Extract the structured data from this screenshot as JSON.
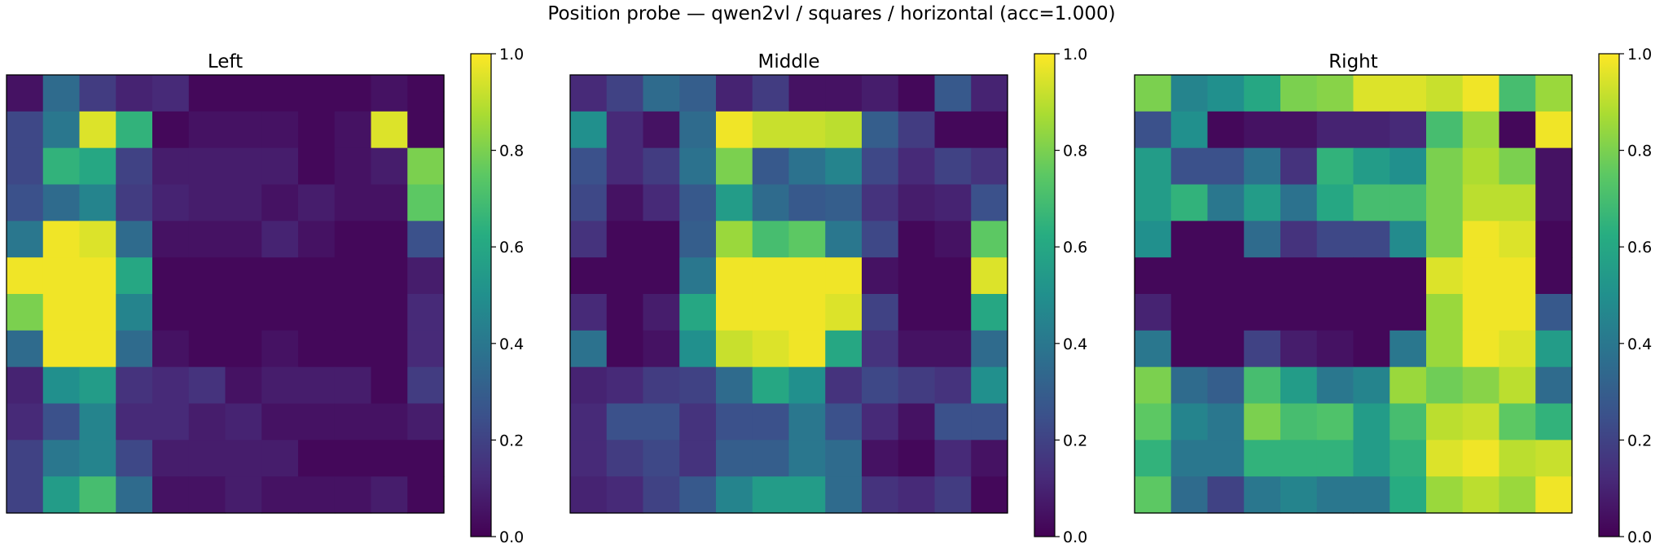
{
  "figure": {
    "title": "Position probe — qwen2vl / squares / horizontal (acc=1.000)"
  },
  "chart_data": [
    {
      "type": "heatmap",
      "title": "Left",
      "colormap": "viridis",
      "vmin": 0.0,
      "vmax": 1.0,
      "colorbar_ticks": [
        "0.0",
        "0.2",
        "0.4",
        "0.6",
        "0.8",
        "1.0"
      ],
      "grid": false,
      "values": [
        [
          0.05,
          0.35,
          0.18,
          0.1,
          0.12,
          0.02,
          0.02,
          0.02,
          0.02,
          0.02,
          0.05,
          0.02
        ],
        [
          0.22,
          0.4,
          0.95,
          0.65,
          0.02,
          0.05,
          0.05,
          0.05,
          0.02,
          0.05,
          0.95,
          0.02
        ],
        [
          0.22,
          0.65,
          0.6,
          0.2,
          0.08,
          0.08,
          0.08,
          0.08,
          0.02,
          0.05,
          0.08,
          0.8
        ],
        [
          0.25,
          0.35,
          0.45,
          0.18,
          0.1,
          0.08,
          0.08,
          0.05,
          0.08,
          0.05,
          0.05,
          0.75
        ],
        [
          0.4,
          0.98,
          0.95,
          0.35,
          0.05,
          0.05,
          0.05,
          0.1,
          0.05,
          0.02,
          0.02,
          0.25
        ],
        [
          0.98,
          0.98,
          0.98,
          0.6,
          0.02,
          0.02,
          0.02,
          0.02,
          0.02,
          0.02,
          0.02,
          0.08
        ],
        [
          0.8,
          0.98,
          0.98,
          0.45,
          0.02,
          0.02,
          0.02,
          0.02,
          0.02,
          0.02,
          0.02,
          0.12
        ],
        [
          0.35,
          0.98,
          0.98,
          0.35,
          0.05,
          0.02,
          0.02,
          0.05,
          0.02,
          0.02,
          0.02,
          0.12
        ],
        [
          0.1,
          0.5,
          0.55,
          0.15,
          0.12,
          0.15,
          0.05,
          0.08,
          0.08,
          0.08,
          0.02,
          0.18
        ],
        [
          0.12,
          0.25,
          0.45,
          0.12,
          0.12,
          0.08,
          0.1,
          0.05,
          0.05,
          0.05,
          0.05,
          0.08
        ],
        [
          0.2,
          0.4,
          0.45,
          0.22,
          0.08,
          0.08,
          0.08,
          0.08,
          0.02,
          0.02,
          0.02,
          0.02
        ],
        [
          0.2,
          0.55,
          0.7,
          0.35,
          0.05,
          0.05,
          0.08,
          0.05,
          0.05,
          0.05,
          0.08,
          0.02
        ]
      ]
    },
    {
      "type": "heatmap",
      "title": "Middle",
      "colormap": "viridis",
      "vmin": 0.0,
      "vmax": 1.0,
      "colorbar_ticks": [
        "0.0",
        "0.2",
        "0.4",
        "0.6",
        "0.8",
        "1.0"
      ],
      "grid": false,
      "values": [
        [
          0.12,
          0.2,
          0.35,
          0.3,
          0.1,
          0.18,
          0.05,
          0.05,
          0.08,
          0.02,
          0.28,
          0.1
        ],
        [
          0.5,
          0.12,
          0.05,
          0.35,
          0.98,
          0.92,
          0.92,
          0.9,
          0.3,
          0.18,
          0.02,
          0.02
        ],
        [
          0.25,
          0.12,
          0.18,
          0.38,
          0.8,
          0.28,
          0.38,
          0.45,
          0.22,
          0.12,
          0.2,
          0.15
        ],
        [
          0.22,
          0.05,
          0.12,
          0.28,
          0.55,
          0.35,
          0.28,
          0.3,
          0.15,
          0.08,
          0.1,
          0.25
        ],
        [
          0.15,
          0.02,
          0.02,
          0.3,
          0.85,
          0.7,
          0.75,
          0.4,
          0.22,
          0.02,
          0.05,
          0.75
        ],
        [
          0.02,
          0.02,
          0.02,
          0.4,
          0.98,
          0.98,
          0.98,
          0.98,
          0.05,
          0.02,
          0.02,
          0.95
        ],
        [
          0.12,
          0.02,
          0.08,
          0.6,
          0.98,
          0.98,
          0.98,
          0.95,
          0.2,
          0.02,
          0.02,
          0.6
        ],
        [
          0.38,
          0.02,
          0.05,
          0.5,
          0.92,
          0.95,
          0.98,
          0.6,
          0.15,
          0.05,
          0.05,
          0.35
        ],
        [
          0.1,
          0.12,
          0.18,
          0.2,
          0.35,
          0.6,
          0.5,
          0.15,
          0.22,
          0.18,
          0.15,
          0.5
        ],
        [
          0.12,
          0.25,
          0.25,
          0.15,
          0.25,
          0.25,
          0.4,
          0.25,
          0.12,
          0.05,
          0.25,
          0.25
        ],
        [
          0.12,
          0.18,
          0.22,
          0.15,
          0.3,
          0.3,
          0.4,
          0.35,
          0.05,
          0.02,
          0.12,
          0.05
        ],
        [
          0.1,
          0.12,
          0.2,
          0.28,
          0.45,
          0.55,
          0.55,
          0.35,
          0.15,
          0.12,
          0.18,
          0.02
        ]
      ]
    },
    {
      "type": "heatmap",
      "title": "Right",
      "colormap": "viridis",
      "vmin": 0.0,
      "vmax": 1.0,
      "colorbar_ticks": [
        "0.0",
        "0.2",
        "0.4",
        "0.6",
        "0.8",
        "1.0"
      ],
      "grid": false,
      "values": [
        [
          0.8,
          0.45,
          0.5,
          0.6,
          0.8,
          0.82,
          0.95,
          0.95,
          0.92,
          0.98,
          0.7,
          0.85
        ],
        [
          0.25,
          0.5,
          0.02,
          0.05,
          0.05,
          0.1,
          0.1,
          0.12,
          0.7,
          0.85,
          0.02,
          0.98
        ],
        [
          0.55,
          0.25,
          0.25,
          0.38,
          0.15,
          0.65,
          0.55,
          0.5,
          0.8,
          0.88,
          0.8,
          0.05
        ],
        [
          0.55,
          0.65,
          0.4,
          0.55,
          0.38,
          0.6,
          0.7,
          0.7,
          0.8,
          0.9,
          0.9,
          0.05
        ],
        [
          0.5,
          0.02,
          0.02,
          0.35,
          0.15,
          0.22,
          0.22,
          0.48,
          0.8,
          0.98,
          0.95,
          0.02
        ],
        [
          0.02,
          0.02,
          0.02,
          0.02,
          0.02,
          0.02,
          0.02,
          0.02,
          0.95,
          0.98,
          0.98,
          0.02
        ],
        [
          0.1,
          0.02,
          0.02,
          0.02,
          0.02,
          0.02,
          0.02,
          0.02,
          0.85,
          0.98,
          0.98,
          0.28
        ],
        [
          0.4,
          0.02,
          0.02,
          0.2,
          0.08,
          0.05,
          0.02,
          0.4,
          0.85,
          0.98,
          0.95,
          0.55
        ],
        [
          0.8,
          0.35,
          0.3,
          0.7,
          0.55,
          0.4,
          0.45,
          0.85,
          0.78,
          0.82,
          0.9,
          0.35
        ],
        [
          0.75,
          0.45,
          0.4,
          0.8,
          0.7,
          0.72,
          0.55,
          0.7,
          0.9,
          0.92,
          0.75,
          0.65
        ],
        [
          0.65,
          0.4,
          0.4,
          0.65,
          0.65,
          0.65,
          0.55,
          0.65,
          0.95,
          0.98,
          0.9,
          0.92
        ],
        [
          0.75,
          0.35,
          0.2,
          0.4,
          0.45,
          0.4,
          0.4,
          0.62,
          0.85,
          0.9,
          0.85,
          0.98
        ]
      ]
    }
  ]
}
